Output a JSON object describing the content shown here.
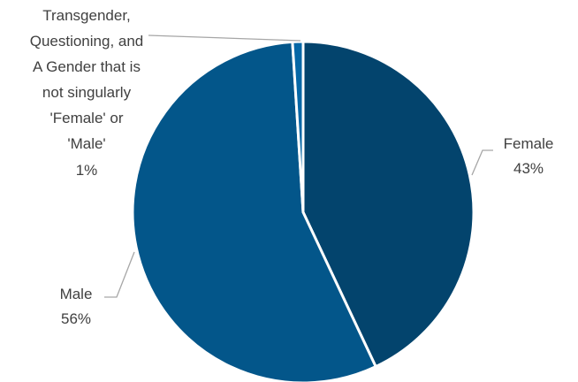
{
  "chart_data": {
    "type": "pie",
    "slices": [
      {
        "label": "Female",
        "value": 43,
        "value_label": "43%",
        "color": "#03446D"
      },
      {
        "label": "Male",
        "value": 56,
        "value_label": "56%",
        "color": "#03568A"
      },
      {
        "label": "Transgender, Questioning, and A Gender that is not singularly 'Female' or 'Male'",
        "value": 1,
        "value_label": "1%",
        "color": "#0567A6"
      }
    ],
    "title": "",
    "legend": "none",
    "start_angle_deg": 0,
    "direction": "clockwise"
  },
  "labels": {
    "female": {
      "name": "Female",
      "pct": "43%"
    },
    "male": {
      "name": "Male",
      "pct": "56%"
    },
    "other": {
      "lines": [
        "Transgender,",
        "Questioning, and",
        "A Gender that is",
        "not singularly",
        "'Female' or",
        "'Male'"
      ],
      "pct": "1%"
    }
  }
}
